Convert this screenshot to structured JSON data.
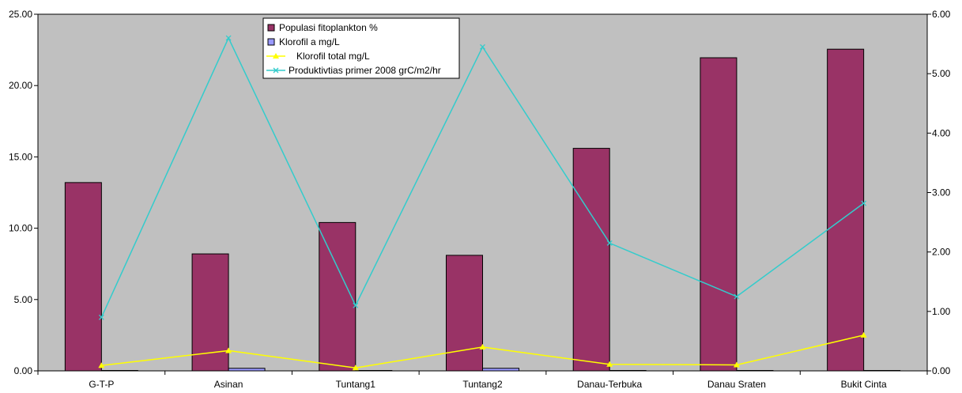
{
  "chart_data": {
    "type": "bar",
    "categories": [
      "G-T-P",
      "Asinan",
      "Tuntang1",
      "Tuntang2",
      "Danau-Terbuka",
      "Danau Sraten",
      "Bukit Cinta"
    ],
    "left_axis": {
      "ylim": [
        0,
        25
      ],
      "ticks": [
        0,
        5,
        10,
        15,
        20,
        25
      ],
      "tick_labels": [
        "0.00",
        "5.00",
        "10.00",
        "15.00",
        "20.00",
        "25.00"
      ]
    },
    "right_axis": {
      "ylim": [
        0,
        6
      ],
      "ticks": [
        0,
        1,
        2,
        3,
        4,
        5,
        6
      ],
      "tick_labels": [
        "0.00",
        "1.00",
        "2.00",
        "3.00",
        "4.00",
        "5.00",
        "6.00"
      ]
    },
    "series": [
      {
        "name": "Populasi fitoplankton %",
        "kind": "bar",
        "axis": "left",
        "color": "#993366",
        "values": [
          13.2,
          8.2,
          10.4,
          8.1,
          15.6,
          21.95,
          22.55
        ]
      },
      {
        "name": "Klorofil a mg/L",
        "kind": "bar",
        "axis": "left",
        "color": "#9999ff",
        "values": [
          0.02,
          0.18,
          0.02,
          0.18,
          0.02,
          0.02,
          0.02
        ]
      },
      {
        "name": "Klorofil total mg/L",
        "kind": "line",
        "axis": "right",
        "color": "#ffff00",
        "marker": "triangle",
        "values": [
          0.09,
          0.34,
          0.05,
          0.4,
          0.11,
          0.1,
          0.6
        ]
      },
      {
        "name": "Produktivtias primer 2008 grC/m2/hr",
        "kind": "line",
        "axis": "right",
        "color": "#33cccc",
        "marker": "x",
        "values": [
          0.9,
          5.6,
          1.1,
          5.45,
          2.15,
          1.25,
          2.82
        ]
      }
    ],
    "plot_background": "#c0c0c0",
    "grid": false,
    "legend_position": "top-center"
  }
}
